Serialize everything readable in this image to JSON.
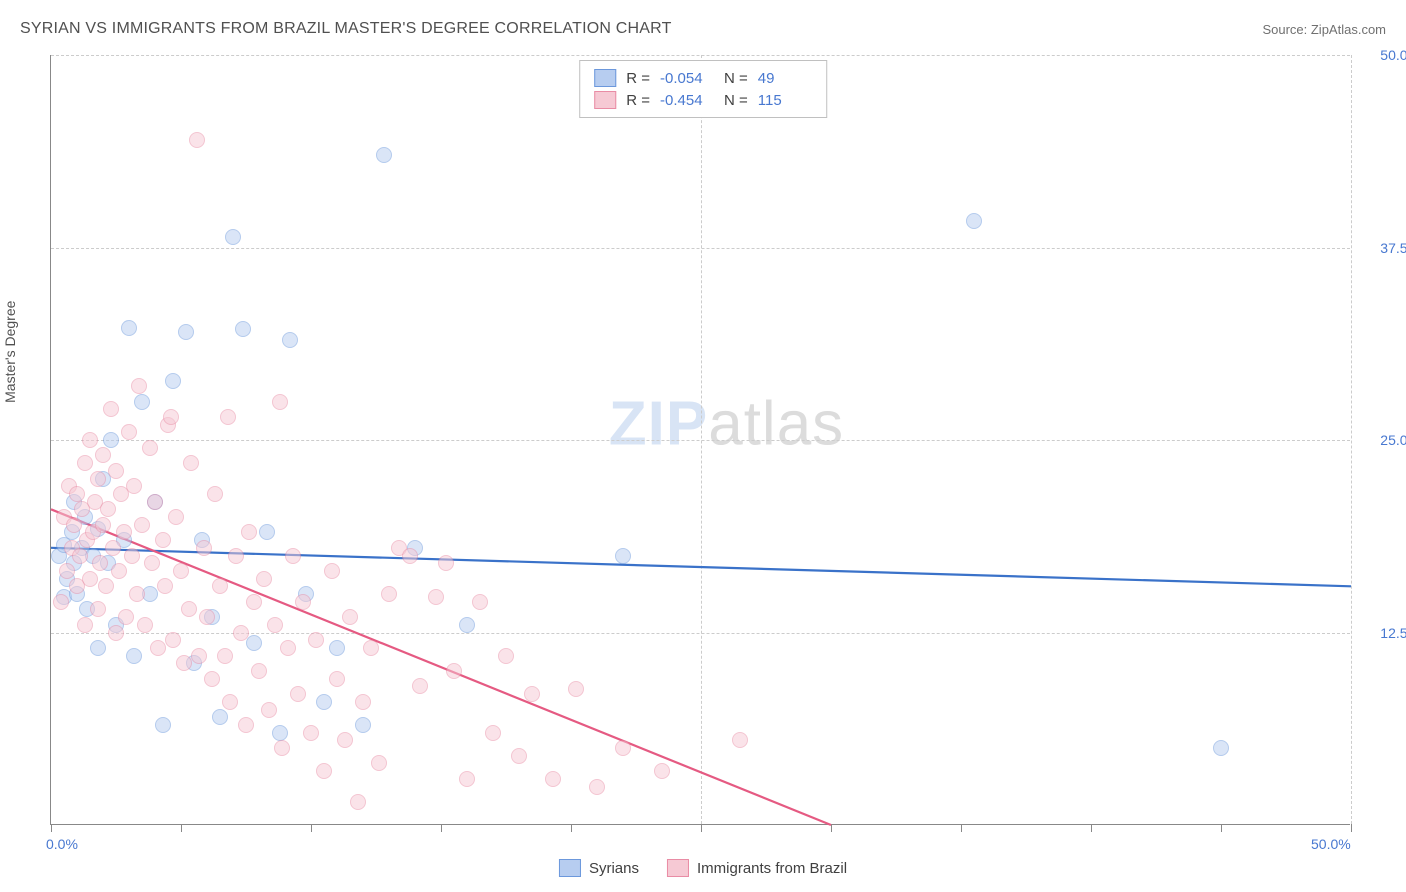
{
  "header": {
    "title": "SYRIAN VS IMMIGRANTS FROM BRAZIL MASTER'S DEGREE CORRELATION CHART",
    "source": "Source: ZipAtlas.com"
  },
  "watermark": {
    "part1": "ZIP",
    "part2": "atlas"
  },
  "chart": {
    "type": "scatter",
    "y_axis_title": "Master's Degree",
    "xlim": [
      0,
      50
    ],
    "ylim": [
      0,
      50
    ],
    "x_ticks": [
      0,
      5,
      10,
      15,
      20,
      25,
      30,
      35,
      40,
      45,
      50
    ],
    "y_grid": [
      12.5,
      25.0,
      37.5,
      50.0
    ],
    "x_labels": [
      {
        "v": 0,
        "t": "0.0%"
      },
      {
        "v": 50,
        "t": "50.0%"
      }
    ],
    "y_labels": [
      {
        "v": 12.5,
        "t": "12.5%"
      },
      {
        "v": 25.0,
        "t": "25.0%"
      },
      {
        "v": 37.5,
        "t": "37.5%"
      },
      {
        "v": 50.0,
        "t": "50.0%"
      }
    ],
    "background_color": "#ffffff",
    "grid_color": "#cccccc",
    "axis_color": "#888888",
    "text_color": "#505050",
    "value_color": "#4878d0",
    "title_fontsize": 16,
    "label_fontsize": 14,
    "marker_radius": 8,
    "marker_opacity": 0.5,
    "line_width": 2.2,
    "series": [
      {
        "name": "Syrians",
        "color_fill": "#b7cdf0",
        "color_stroke": "#6c98dc",
        "color_line": "#3a72c9",
        "r": "-0.054",
        "n": "49",
        "trend": {
          "x1": 0,
          "y1": 18.0,
          "x2": 50,
          "y2": 15.5
        },
        "points": [
          [
            0.3,
            17.5
          ],
          [
            0.5,
            14.8
          ],
          [
            0.5,
            18.2
          ],
          [
            0.6,
            16.0
          ],
          [
            0.8,
            19.0
          ],
          [
            0.9,
            17.0
          ],
          [
            0.9,
            21.0
          ],
          [
            1.0,
            15.0
          ],
          [
            1.2,
            18.0
          ],
          [
            1.3,
            20.0
          ],
          [
            1.4,
            14.0
          ],
          [
            1.6,
            17.5
          ],
          [
            1.8,
            19.2
          ],
          [
            1.8,
            11.5
          ],
          [
            2.0,
            22.5
          ],
          [
            2.2,
            17.0
          ],
          [
            2.3,
            25.0
          ],
          [
            2.5,
            13.0
          ],
          [
            2.8,
            18.5
          ],
          [
            3.0,
            32.3
          ],
          [
            3.2,
            11.0
          ],
          [
            3.5,
            27.5
          ],
          [
            3.8,
            15.0
          ],
          [
            4.0,
            21.0
          ],
          [
            4.3,
            6.5
          ],
          [
            4.7,
            28.8
          ],
          [
            5.2,
            32.0
          ],
          [
            5.5,
            10.5
          ],
          [
            5.8,
            18.5
          ],
          [
            6.2,
            13.5
          ],
          [
            6.5,
            7.0
          ],
          [
            7.0,
            38.2
          ],
          [
            7.4,
            32.2
          ],
          [
            7.8,
            11.8
          ],
          [
            8.3,
            19.0
          ],
          [
            8.8,
            6.0
          ],
          [
            9.2,
            31.5
          ],
          [
            9.8,
            15.0
          ],
          [
            10.5,
            8.0
          ],
          [
            11.0,
            11.5
          ],
          [
            12.0,
            6.5
          ],
          [
            12.8,
            43.5
          ],
          [
            14.0,
            18.0
          ],
          [
            16.0,
            13.0
          ],
          [
            22.0,
            17.5
          ],
          [
            35.5,
            39.2
          ],
          [
            45.0,
            5.0
          ]
        ]
      },
      {
        "name": "Immigrants from Brazil",
        "color_fill": "#f6c9d4",
        "color_stroke": "#e98ca5",
        "color_line": "#e55a82",
        "r": "-0.454",
        "n": "115",
        "trend": {
          "x1": 0,
          "y1": 20.5,
          "x2": 30,
          "y2": 0.0
        },
        "points": [
          [
            0.4,
            14.5
          ],
          [
            0.5,
            20.0
          ],
          [
            0.6,
            16.5
          ],
          [
            0.7,
            22.0
          ],
          [
            0.8,
            18.0
          ],
          [
            0.9,
            19.5
          ],
          [
            1.0,
            15.5
          ],
          [
            1.0,
            21.5
          ],
          [
            1.1,
            17.5
          ],
          [
            1.2,
            20.5
          ],
          [
            1.3,
            13.0
          ],
          [
            1.3,
            23.5
          ],
          [
            1.4,
            18.5
          ],
          [
            1.5,
            16.0
          ],
          [
            1.5,
            25.0
          ],
          [
            1.6,
            19.0
          ],
          [
            1.7,
            21.0
          ],
          [
            1.8,
            14.0
          ],
          [
            1.8,
            22.5
          ],
          [
            1.9,
            17.0
          ],
          [
            2.0,
            19.5
          ],
          [
            2.0,
            24.0
          ],
          [
            2.1,
            15.5
          ],
          [
            2.2,
            20.5
          ],
          [
            2.3,
            27.0
          ],
          [
            2.4,
            18.0
          ],
          [
            2.5,
            12.5
          ],
          [
            2.5,
            23.0
          ],
          [
            2.6,
            16.5
          ],
          [
            2.7,
            21.5
          ],
          [
            2.8,
            19.0
          ],
          [
            2.9,
            13.5
          ],
          [
            3.0,
            25.5
          ],
          [
            3.1,
            17.5
          ],
          [
            3.2,
            22.0
          ],
          [
            3.3,
            15.0
          ],
          [
            3.4,
            28.5
          ],
          [
            3.5,
            19.5
          ],
          [
            3.6,
            13.0
          ],
          [
            3.8,
            24.5
          ],
          [
            3.9,
            17.0
          ],
          [
            4.0,
            21.0
          ],
          [
            4.1,
            11.5
          ],
          [
            4.3,
            18.5
          ],
          [
            4.4,
            15.5
          ],
          [
            4.5,
            26.0
          ],
          [
            4.6,
            26.5
          ],
          [
            4.7,
            12.0
          ],
          [
            4.8,
            20.0
          ],
          [
            5.0,
            16.5
          ],
          [
            5.1,
            10.5
          ],
          [
            5.3,
            14.0
          ],
          [
            5.4,
            23.5
          ],
          [
            5.6,
            44.5
          ],
          [
            5.7,
            11.0
          ],
          [
            5.9,
            18.0
          ],
          [
            6.0,
            13.5
          ],
          [
            6.2,
            9.5
          ],
          [
            6.3,
            21.5
          ],
          [
            6.5,
            15.5
          ],
          [
            6.7,
            11.0
          ],
          [
            6.8,
            26.5
          ],
          [
            6.9,
            8.0
          ],
          [
            7.1,
            17.5
          ],
          [
            7.3,
            12.5
          ],
          [
            7.5,
            6.5
          ],
          [
            7.6,
            19.0
          ],
          [
            7.8,
            14.5
          ],
          [
            8.0,
            10.0
          ],
          [
            8.2,
            16.0
          ],
          [
            8.4,
            7.5
          ],
          [
            8.6,
            13.0
          ],
          [
            8.8,
            27.5
          ],
          [
            8.9,
            5.0
          ],
          [
            9.1,
            11.5
          ],
          [
            9.3,
            17.5
          ],
          [
            9.5,
            8.5
          ],
          [
            9.7,
            14.5
          ],
          [
            10.0,
            6.0
          ],
          [
            10.2,
            12.0
          ],
          [
            10.5,
            3.5
          ],
          [
            10.8,
            16.5
          ],
          [
            11.0,
            9.5
          ],
          [
            11.3,
            5.5
          ],
          [
            11.5,
            13.5
          ],
          [
            11.8,
            1.5
          ],
          [
            12.0,
            8.0
          ],
          [
            12.3,
            11.5
          ],
          [
            12.6,
            4.0
          ],
          [
            13.0,
            15.0
          ],
          [
            13.4,
            18.0
          ],
          [
            13.8,
            17.5
          ],
          [
            14.2,
            9.0
          ],
          [
            14.8,
            14.8
          ],
          [
            15.2,
            17.0
          ],
          [
            15.5,
            10.0
          ],
          [
            16.0,
            3.0
          ],
          [
            16.5,
            14.5
          ],
          [
            17.0,
            6.0
          ],
          [
            17.5,
            11.0
          ],
          [
            18.0,
            4.5
          ],
          [
            18.5,
            8.5
          ],
          [
            19.3,
            3.0
          ],
          [
            20.2,
            8.8
          ],
          [
            21.0,
            2.5
          ],
          [
            22.0,
            5.0
          ],
          [
            23.5,
            3.5
          ],
          [
            26.5,
            5.5
          ]
        ]
      }
    ]
  },
  "legend_bottom": [
    {
      "label": "Syrians",
      "series": 0
    },
    {
      "label": "Immigrants from Brazil",
      "series": 1
    }
  ]
}
